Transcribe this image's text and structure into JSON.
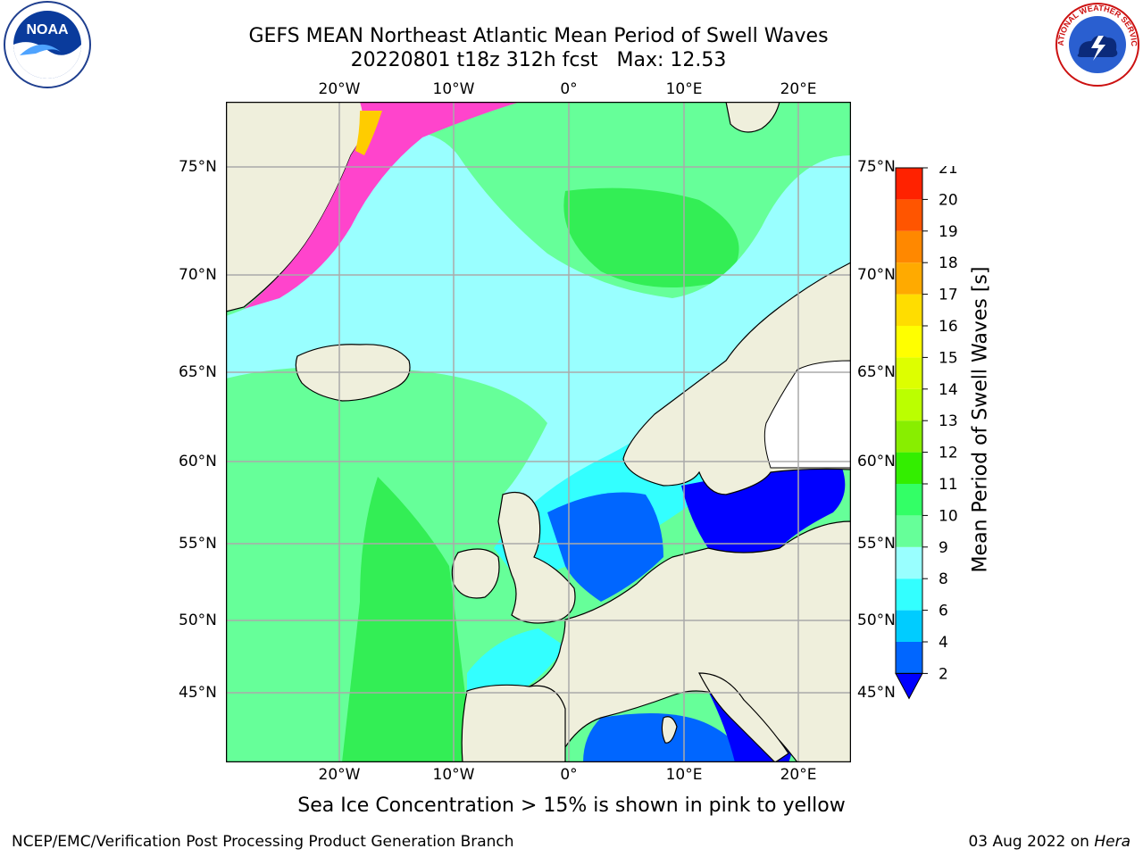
{
  "title_line1": "GEFS MEAN Northeast Atlantic Mean Period of Swell Waves",
  "title_line2": "20220801 t18z 312h fcst   Max: 12.53",
  "lon_labels": [
    "20°W",
    "10°W",
    "0°",
    "10°E",
    "20°E"
  ],
  "lat_labels": [
    "75°N",
    "70°N",
    "65°N",
    "60°N",
    "55°N",
    "50°N",
    "45°N"
  ],
  "colorbar": {
    "title": "Mean Period of Swell Waves [s]",
    "ticks": [
      "2",
      "4",
      "6",
      "8",
      "9",
      "10",
      "11",
      "12",
      "13",
      "14",
      "15",
      "16",
      "17",
      "18",
      "19",
      "20",
      "21"
    ],
    "colors": [
      "#0066ff",
      "#00ccff",
      "#33ffff",
      "#99ffff",
      "#66ff99",
      "#33ff66",
      "#33ee00",
      "#88ee00",
      "#bbff00",
      "#ddff00",
      "#ffff00",
      "#ffdd00",
      "#ffaa00",
      "#ff8800",
      "#ff5500",
      "#ff2200"
    ],
    "under_color": "#0000ff"
  },
  "sea_ice_note": "Sea Ice Concentration > 15% is shown in pink to yellow",
  "footer_left": "NCEP/EMC/Verification Post Processing Product Generation Branch",
  "footer_date": "03 Aug 2022 on",
  "footer_machine": "Hera",
  "logo_left": {
    "text": "NOAA",
    "icon": "noaa-logo"
  },
  "logo_right": {
    "text": "NATIONAL WEATHER SERVICE",
    "icon": "nws-logo"
  },
  "map_colors": {
    "land": "#efefdc",
    "open_ocean": "#66ff99",
    "swell_10_11": "#33ee55",
    "swell_8_9": "#99ffff",
    "swell_6_8": "#33ffff",
    "swell_4_6": "#00ccff",
    "swell_2_4": "#0066ff",
    "swell_lt2": "#0000ff",
    "ice_pink": "#ff44cc",
    "ice_yellow": "#ffcc00",
    "grid": "#aaaaaa"
  }
}
